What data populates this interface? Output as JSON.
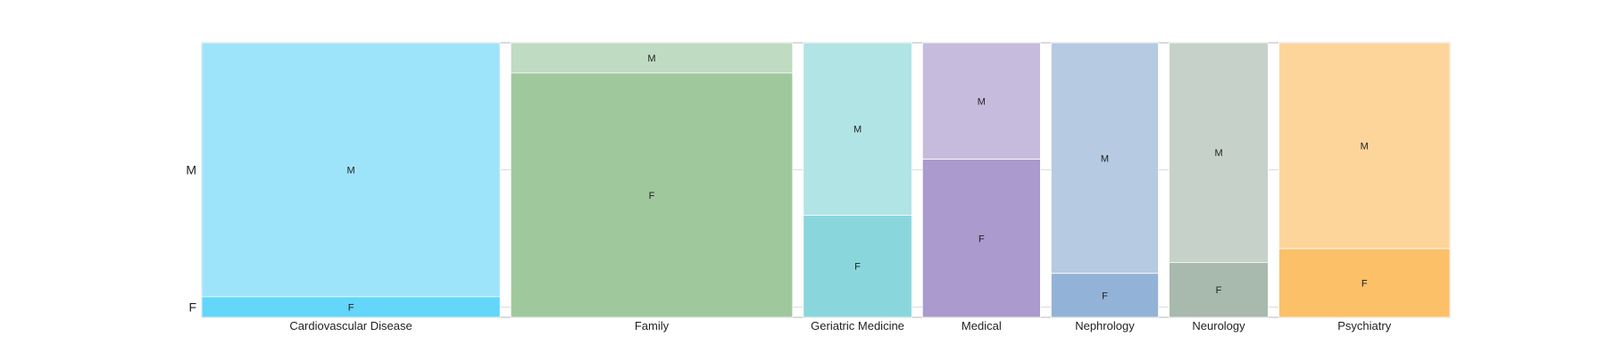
{
  "chart_data": {
    "type": "mosaic",
    "title": "",
    "xlabel": "",
    "ylabel": "",
    "grid": true,
    "legend": "none",
    "y_categories": [
      "F",
      "M"
    ],
    "y_tick_labels": [
      "F",
      "M"
    ],
    "categories": [
      {
        "name": "Cardiovascular Disease",
        "width_fraction": 0.253,
        "f_fraction": 0.075,
        "colors": {
          "F": "#63d6fa",
          "M": "#9de4fb"
        }
      },
      {
        "name": "Family",
        "width_fraction": 0.239,
        "f_fraction": 0.89,
        "colors": {
          "F": "#a0c89d",
          "M": "#bfdbc1"
        }
      },
      {
        "name": "Geriatric Medicine",
        "width_fraction": 0.092,
        "f_fraction": 0.372,
        "colors": {
          "F": "#89d7dd",
          "M": "#b0e4e5"
        }
      },
      {
        "name": "Medical",
        "width_fraction": 0.1,
        "f_fraction": 0.576,
        "colors": {
          "F": "#aa9acd",
          "M": "#c6bbdd"
        }
      },
      {
        "name": "Nephrology",
        "width_fraction": 0.091,
        "f_fraction": 0.16,
        "colors": {
          "F": "#93b2d7",
          "M": "#b6cae2"
        }
      },
      {
        "name": "Neurology",
        "width_fraction": 0.084,
        "f_fraction": 0.2,
        "colors": {
          "F": "#a8b9ad",
          "M": "#c6d1c9"
        }
      },
      {
        "name": "Psychiatry",
        "width_fraction": 0.145,
        "f_fraction": 0.25,
        "colors": {
          "F": "#fcc068",
          "M": "#fdd59b"
        }
      }
    ]
  }
}
